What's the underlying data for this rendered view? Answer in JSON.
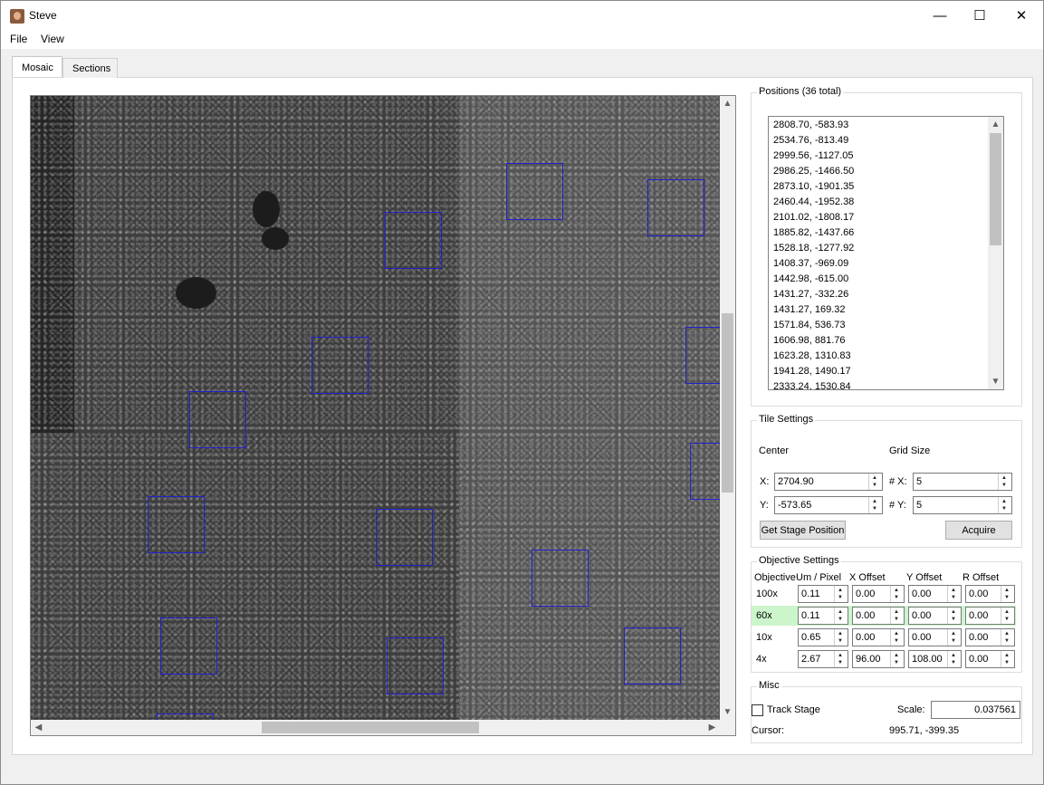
{
  "window": {
    "title": "Steve",
    "minimize_glyph": "—",
    "maximize_glyph": "☐",
    "close_glyph": "✕"
  },
  "menu": {
    "file": "File",
    "view": "View"
  },
  "tabs": [
    {
      "label": "Mosaic",
      "active": true
    },
    {
      "label": "Sections",
      "active": false
    }
  ],
  "positions": {
    "title": "Positions (36 total)",
    "items": [
      "2808.70, -583.93",
      "2534.76, -813.49",
      "2999.56, -1127.05",
      "2986.25, -1466.50",
      "2873.10, -1901.35",
      "2460.44, -1952.38",
      "2101.02, -1808.17",
      "1885.82, -1437.66",
      "1528.18, -1277.92",
      "1408.37, -969.09",
      "1442.98, -615.00",
      "1431.27, -332.26",
      "1431.27, 169.32",
      "1571.84, 536.73",
      "1606.98, 881.76",
      "1623.28, 1310.83",
      "1941.28, 1490.17",
      "2333.24, 1530.84"
    ]
  },
  "tile_settings": {
    "title": "Tile Settings",
    "center_label": "Center",
    "grid_label": "Grid Size",
    "x_label": "X:",
    "y_label": "Y:",
    "nx_label": "# X:",
    "ny_label": "# Y:",
    "x_value": "2704.90",
    "y_value": "-573.65",
    "nx_value": "5",
    "ny_value": "5",
    "get_stage_button": "Get Stage Position",
    "acquire_button": "Acquire"
  },
  "objective_settings": {
    "title": "Objective Settings",
    "headers": [
      "Objective",
      "Um / Pixel",
      "X Offset",
      "Y Offset",
      "R Offset"
    ],
    "rows": [
      {
        "name": "100x",
        "um": "0.11",
        "x": "0.00",
        "y": "0.00",
        "r": "0.00"
      },
      {
        "name": "60x",
        "um": "0.11",
        "x": "0.00",
        "y": "0.00",
        "r": "0.00"
      },
      {
        "name": "10x",
        "um": "0.65",
        "x": "0.00",
        "y": "0.00",
        "r": "0.00"
      },
      {
        "name": "4x",
        "um": "2.67",
        "x": "96.00",
        "y": "108.00",
        "r": "0.00"
      }
    ],
    "highlight_color": "#ccf5cc"
  },
  "misc": {
    "title": "Misc",
    "track_stage_label": "Track Stage",
    "track_stage_checked": false,
    "scale_label": "Scale:",
    "scale_value": "0.037561",
    "cursor_label": "Cursor:",
    "cursor_value": "995.71, -399.35"
  },
  "colors": {
    "marker_box": "#2020d0"
  },
  "icons": {
    "scroll_up": "▲",
    "scroll_down": "▼",
    "scroll_left": "◀",
    "scroll_right": "▶",
    "spin_up": "▲",
    "spin_down": "▼"
  }
}
